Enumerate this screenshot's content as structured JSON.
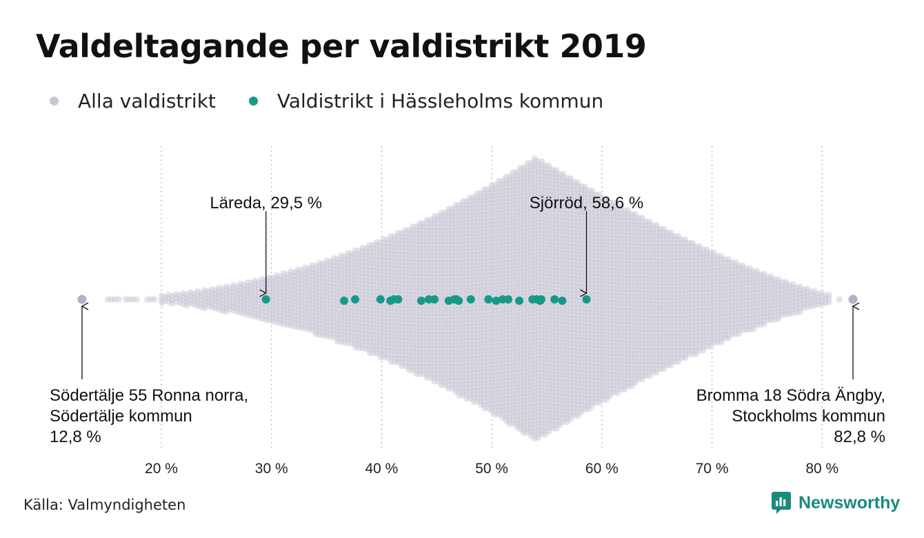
{
  "header": {
    "title": "Valdeltagande per valdistrikt 2019"
  },
  "legend": {
    "items": [
      {
        "label": "Alla valdistrikt",
        "color": "#c9c7d6"
      },
      {
        "label": "Valdistrikt i Hässleholms kommun",
        "color": "#17998a"
      }
    ]
  },
  "footer": {
    "source": "Källa: Valmyndigheten",
    "brand": "Newsworthy",
    "brand_icon": "newsworthy-logo-icon"
  },
  "chart_data": {
    "type": "scatter",
    "subtype": "beeswarm",
    "title": "Valdeltagande per valdistrikt 2019",
    "xlabel": "",
    "ylabel": "",
    "xlim": [
      12,
      84
    ],
    "x_ticks": [
      20,
      30,
      40,
      50,
      60,
      70,
      80
    ],
    "tick_labels": [
      "20 %",
      "30 %",
      "40 %",
      "50 %",
      "60 %",
      "70 %",
      "80 %"
    ],
    "grid": "vertical dotted",
    "legend_position": "top-left",
    "series": [
      {
        "name": "Alla valdistrikt",
        "color": "#c9c7d6",
        "distribution": "dense beeswarm, peak near 54 %, range 12,8 % – 82,8 %",
        "min": 12.8,
        "max": 82.8,
        "peak": 54
      },
      {
        "name": "Valdistrikt i Hässleholms kommun",
        "color": "#17998a",
        "values": [
          29.5,
          36.6,
          37.6,
          39.9,
          40.8,
          41.1,
          41.5,
          43.6,
          44.3,
          44.8,
          46.1,
          46.6,
          46.8,
          47.0,
          48.1,
          49.7,
          50.4,
          51.0,
          51.5,
          52.5,
          53.7,
          54.1,
          54.4,
          54.5,
          55.7,
          56.4,
          58.6
        ]
      }
    ],
    "annotations": [
      {
        "lines": [
          "Läreda, 29,5 %"
        ],
        "x": 29.5,
        "series": "Valdistrikt i Hässleholms kommun"
      },
      {
        "lines": [
          "Sjörröd, 58,6 %"
        ],
        "x": 58.6,
        "series": "Valdistrikt i Hässleholms kommun"
      },
      {
        "lines": [
          "Södertälje 55 Ronna norra,",
          "Södertälje kommun",
          "12,8 %"
        ],
        "x": 12.8,
        "series": "Alla valdistrikt"
      },
      {
        "lines": [
          "Bromma 18 Södra Ängby,",
          "Stockholms kommun",
          "82,8 %"
        ],
        "x": 82.8,
        "series": "Alla valdistrikt"
      }
    ]
  }
}
